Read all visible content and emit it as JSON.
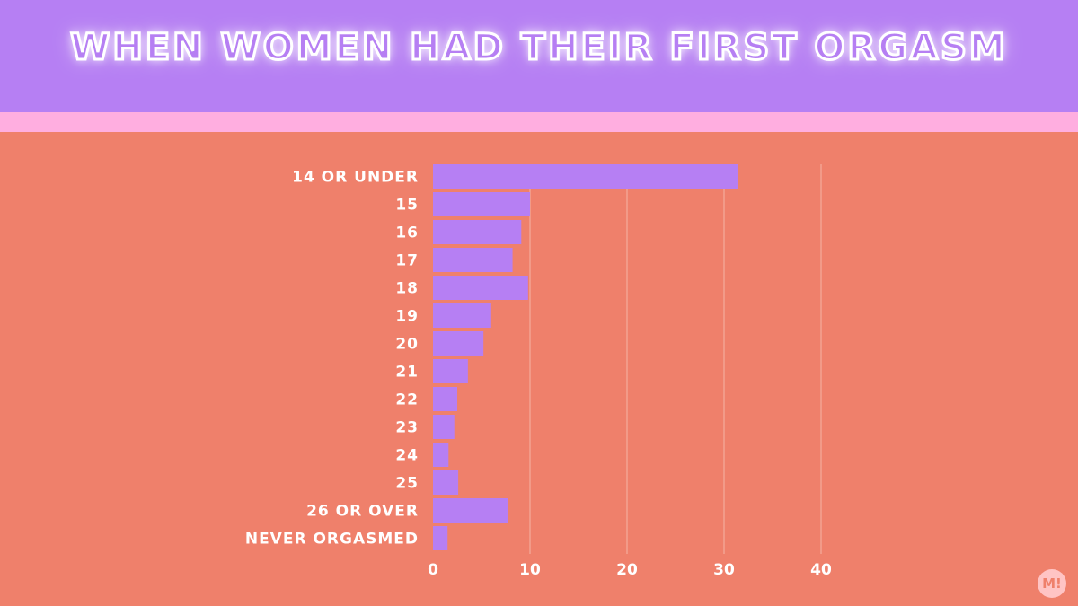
{
  "title": "WHEN WOMEN HAD THEIR FIRST ORGASM",
  "logo_text": "M!",
  "colors": {
    "background": "#ef806b",
    "header": "#b67ff3",
    "stripe": "#ffaee0",
    "bar": "#b67ff3",
    "gridline": "#f5b3a6",
    "label": "#ffffff"
  },
  "chart_data": {
    "type": "bar",
    "orientation": "horizontal",
    "categories": [
      "14 OR UNDER",
      "15",
      "16",
      "17",
      "18",
      "19",
      "20",
      "21",
      "22",
      "23",
      "24",
      "25",
      "26 OR OVER",
      "NEVER ORGASMED"
    ],
    "values": [
      31.4,
      10,
      9.1,
      8.2,
      9.8,
      6,
      5.2,
      3.6,
      2.5,
      2.2,
      1.6,
      2.6,
      7.7,
      1.5
    ],
    "x_ticks": [
      "0",
      "10",
      "20",
      "30",
      "40"
    ],
    "xlim": [
      0,
      40
    ],
    "xlabel": "",
    "ylabel": "",
    "grid": "vertical"
  }
}
